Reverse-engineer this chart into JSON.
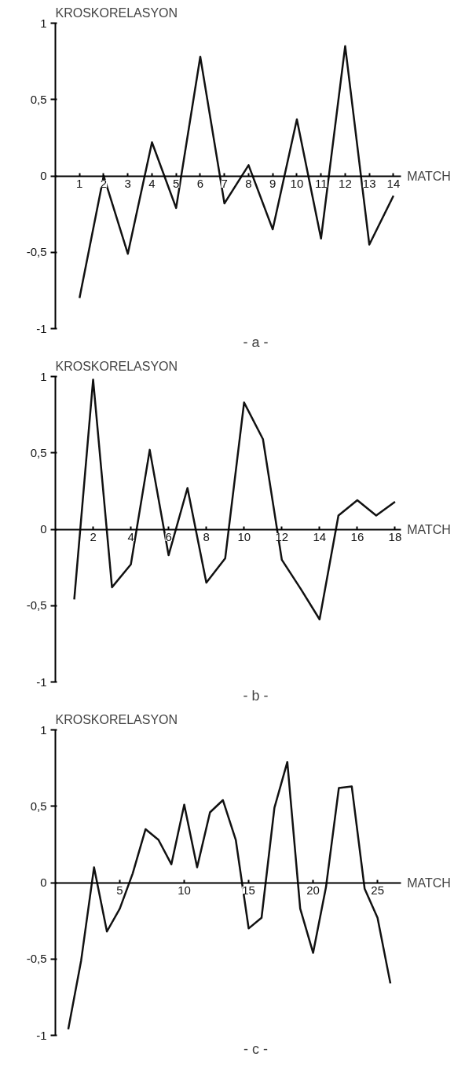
{
  "chart_data": [
    {
      "type": "line",
      "ylabel": "KROSKORELASYON",
      "xlabel": "MATCH",
      "annotations": [
        "- a -"
      ],
      "x": [
        1,
        2,
        3,
        4,
        5,
        6,
        7,
        8,
        9,
        10,
        11,
        12,
        13,
        14
      ],
      "series": [
        {
          "color": "#111111",
          "values": [
            -0.8,
            0.0,
            -0.51,
            0.22,
            -0.21,
            0.78,
            -0.18,
            0.07,
            -0.35,
            0.37,
            -0.41,
            0.85,
            -0.45,
            -0.13
          ]
        }
      ],
      "xlim": [
        0,
        14.3
      ],
      "xticks": [
        1,
        2,
        3,
        4,
        5,
        6,
        7,
        8,
        9,
        10,
        11,
        12,
        13,
        14
      ],
      "ylim": [
        -1,
        1
      ],
      "yticks": [
        {
          "value": -1,
          "label": "-1"
        },
        {
          "value": -0.5,
          "label": "-0,5"
        },
        0,
        {
          "value": 0.5,
          "label": "0,5"
        },
        1
      ],
      "grid": false,
      "marker": "none",
      "line_style": "solid"
    },
    {
      "type": "line",
      "ylabel": "KROSKORELASYON",
      "xlabel": "MATCH",
      "annotations": [
        "- b -"
      ],
      "x": [
        1,
        2,
        3,
        4,
        5,
        6,
        7,
        8,
        9,
        10,
        11,
        12,
        13,
        14,
        15,
        16,
        17,
        18
      ],
      "series": [
        {
          "color": "#111111",
          "values": [
            -0.46,
            0.98,
            -0.38,
            -0.23,
            0.52,
            -0.17,
            0.27,
            -0.35,
            -0.19,
            0.83,
            0.59,
            -0.2,
            -0.39,
            -0.59,
            0.09,
            0.19,
            0.09,
            0.18
          ]
        }
      ],
      "xlim": [
        0,
        18.3
      ],
      "xticks": [
        2,
        4,
        6,
        8,
        10,
        12,
        14,
        16,
        18
      ],
      "ylim": [
        -1,
        1
      ],
      "yticks": [
        {
          "value": -1,
          "label": "-1"
        },
        {
          "value": -0.5,
          "label": "-0,5"
        },
        0,
        {
          "value": 0.5,
          "label": "0,5"
        },
        1
      ],
      "grid": false,
      "marker": "none",
      "line_style": "solid"
    },
    {
      "type": "line",
      "ylabel": "KROSKORELASYON",
      "xlabel": "MATCH",
      "annotations": [
        "- c -"
      ],
      "x": [
        1,
        2,
        3,
        4,
        5,
        6,
        7,
        8,
        9,
        10,
        11,
        12,
        13,
        14,
        15,
        16,
        17,
        18,
        19,
        20,
        21,
        22,
        23,
        24,
        25,
        26
      ],
      "series": [
        {
          "color": "#111111",
          "values": [
            -0.96,
            -0.51,
            0.1,
            -0.32,
            -0.17,
            0.06,
            0.35,
            0.28,
            0.12,
            0.51,
            0.1,
            0.46,
            0.54,
            0.28,
            -0.3,
            -0.23,
            0.49,
            0.79,
            -0.17,
            -0.46,
            -0.03,
            0.62,
            0.63,
            -0.04,
            -0.23,
            -0.66
          ]
        }
      ],
      "xlim": [
        0,
        26.8
      ],
      "xticks": [
        5,
        10,
        15,
        20,
        25
      ],
      "ylim": [
        -1,
        1
      ],
      "yticks": [
        {
          "value": -1,
          "label": "-1"
        },
        {
          "value": -0.5,
          "label": "-0,5"
        },
        0,
        {
          "value": 0.5,
          "label": "0,5"
        },
        1
      ],
      "grid": false,
      "marker": "none",
      "line_style": "solid"
    }
  ]
}
